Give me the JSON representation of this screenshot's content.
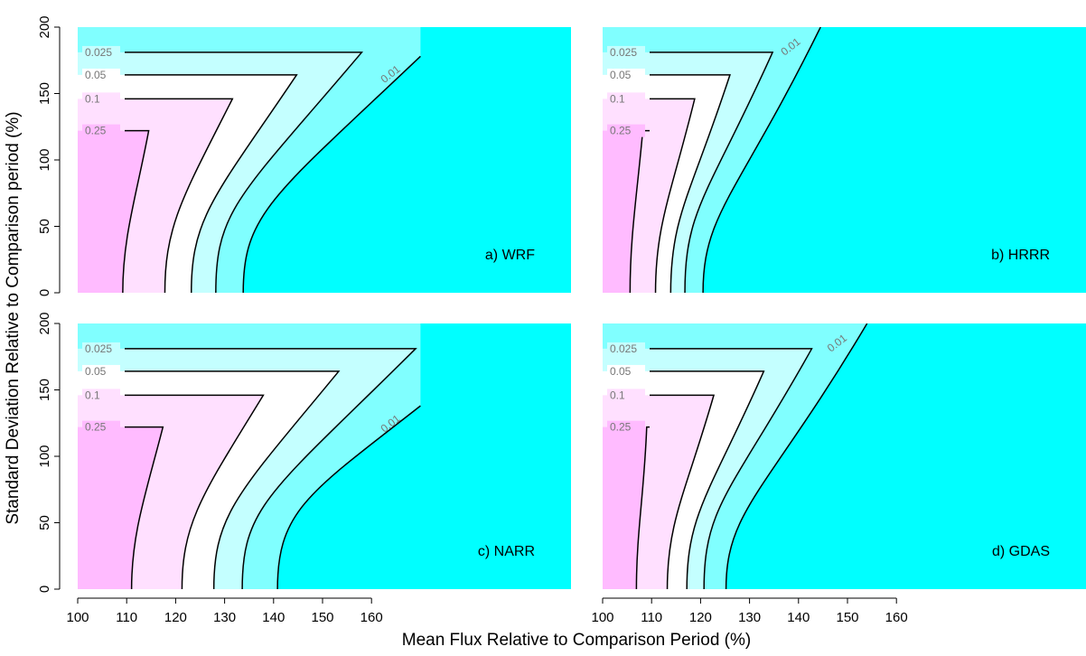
{
  "chart_data": {
    "type": "contour",
    "xlabel": "Mean Flux Relative to Comparison Period (%)",
    "ylabel": "Standard Deviation Relative to Comparison period (%)",
    "xlim": [
      100,
      170
    ],
    "ylim": [
      0,
      200
    ],
    "xticks": [
      "100",
      "110",
      "120",
      "130",
      "140",
      "150",
      "160"
    ],
    "yticks": [
      "0",
      "50",
      "100",
      "150",
      "200"
    ],
    "levels": [
      {
        "label": "0.25",
        "color": "#ffbbff"
      },
      {
        "label": "0.1",
        "color": "#ffe0ff"
      },
      {
        "label": "0.05",
        "color": "#ffffff"
      },
      {
        "label": "0.025",
        "color": "#c4ffff"
      },
      {
        "label": "0.01",
        "color": "#80ffff"
      },
      {
        "label": "",
        "color": "#00ffff"
      }
    ],
    "panels": [
      {
        "label": "a) WRF",
        "base": [
          109.2,
          117.8,
          123.2,
          128.2,
          133.8
        ],
        "cap": [
          122,
          146,
          164,
          181
        ],
        "capx": [
          114.5,
          131.6,
          144.7,
          158.0
        ],
        "mid": [
          [
            112.0,
            73
          ],
          [
            121.6,
            73
          ],
          [
            128.1,
            73
          ],
          [
            133.2,
            73
          ],
          [
            140.0,
            73
          ]
        ],
        "end01": [
          170,
          178
        ]
      },
      {
        "label": "b) HRRR",
        "base": [
          105.6,
          110.8,
          113.9,
          116.8,
          120.5
        ],
        "cap": [
          122,
          146,
          164,
          181
        ],
        "capx": [
          108.2,
          118.8,
          126.0,
          134.7
        ],
        "mid": [
          [
            107.0,
            73
          ],
          [
            113.9,
            73
          ],
          [
            117.9,
            73
          ],
          [
            121.5,
            73
          ],
          [
            127.5,
            73
          ]
        ],
        "end01": [
          144.5,
          200
        ]
      },
      {
        "label": "c) NARR",
        "base": [
          111.0,
          121.3,
          127.8,
          133.6,
          140.8
        ],
        "cap": [
          122,
          146,
          164,
          181
        ],
        "capx": [
          117.4,
          137.9,
          153.3,
          169.0
        ],
        "mid": [
          [
            114.0,
            73
          ],
          [
            125.8,
            73
          ],
          [
            133.0,
            73
          ],
          [
            139.5,
            73
          ],
          [
            147.5,
            73
          ]
        ],
        "end01": [
          170,
          138
        ]
      },
      {
        "label": "d) GDAS",
        "base": [
          106.9,
          113.2,
          117.2,
          120.7,
          125.2
        ],
        "cap": [
          122,
          146,
          164,
          181
        ],
        "capx": [
          109.0,
          122.7,
          132.9,
          142.7
        ],
        "mid": [
          [
            108.5,
            73
          ],
          [
            117.0,
            73
          ],
          [
            122.0,
            73
          ],
          [
            126.3,
            73
          ],
          [
            133.5,
            73
          ]
        ],
        "end01": [
          154.0,
          200
        ]
      }
    ]
  }
}
